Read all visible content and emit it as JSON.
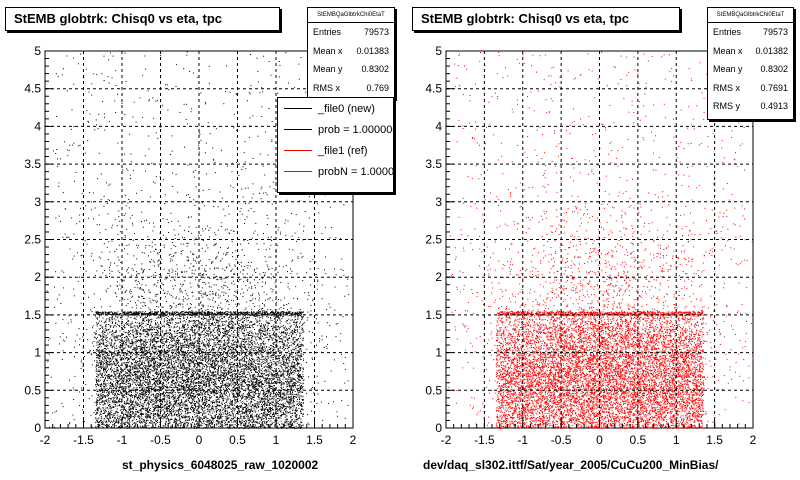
{
  "chart_data": [
    {
      "type": "scatter",
      "title": "StEMB globtrk: Chisq0 vs eta, tpc",
      "xlabel": "st_physics_6048025_raw_1020002",
      "ylabel": "",
      "xlim": [
        -2,
        2
      ],
      "ylim": [
        0,
        5
      ],
      "x_ticks": [
        "-2",
        "-1.5",
        "-1",
        "-0.5",
        "0",
        "0.5",
        "1",
        "1.5",
        "2"
      ],
      "y_ticks": [
        "0",
        "0.5",
        "1",
        "1.5",
        "2",
        "2.5",
        "3",
        "3.5",
        "4",
        "4.5",
        "5"
      ],
      "grid": true,
      "color": "#000000",
      "stats": {
        "name": "StEMBQaGlbtrkChi0EtaT",
        "rows": [
          {
            "label": "Entries",
            "value": "79573"
          },
          {
            "label": "Mean x",
            "value": "0.01383"
          },
          {
            "label": "Mean y",
            "value": "0.8302"
          },
          {
            "label": "RMS x",
            "value": "0.769"
          }
        ]
      },
      "legend": {
        "placement": "top-right",
        "entries": [
          {
            "label": "_file0 (new)",
            "color": "#000000"
          },
          {
            "label": "prob = 1.000000",
            "color": "#000000"
          },
          {
            "label": "_file1 (ref)",
            "color": "#ff0000"
          },
          {
            "label": "probN = 1.000000",
            "color": "#ff0000"
          }
        ]
      }
    },
    {
      "type": "scatter",
      "title": "StEMB globtrk: Chisq0 vs eta, tpc",
      "xlabel": "dev/daq_sl302.ittf/Sat/year_2005/CuCu200_MinBias/",
      "ylabel": "",
      "xlim": [
        -2,
        2
      ],
      "ylim": [
        0,
        5
      ],
      "x_ticks": [
        "-2",
        "-1.5",
        "-1",
        "-0.5",
        "0",
        "0.5",
        "1",
        "1.5",
        "2"
      ],
      "y_ticks": [
        "0",
        "0.5",
        "1",
        "1.5",
        "2",
        "2.5",
        "3",
        "3.5",
        "4",
        "4.5",
        "5"
      ],
      "grid": true,
      "color": "#ff0000",
      "stats": {
        "name": "StEMBQaGlbtrkChi0EtaT",
        "rows": [
          {
            "label": "Entries",
            "value": "79573"
          },
          {
            "label": "Mean x",
            "value": "0.01382"
          },
          {
            "label": "Mean y",
            "value": "0.8302"
          },
          {
            "label": "RMS x",
            "value": "0.7691"
          },
          {
            "label": "RMS y",
            "value": "0.4913"
          }
        ]
      }
    }
  ]
}
